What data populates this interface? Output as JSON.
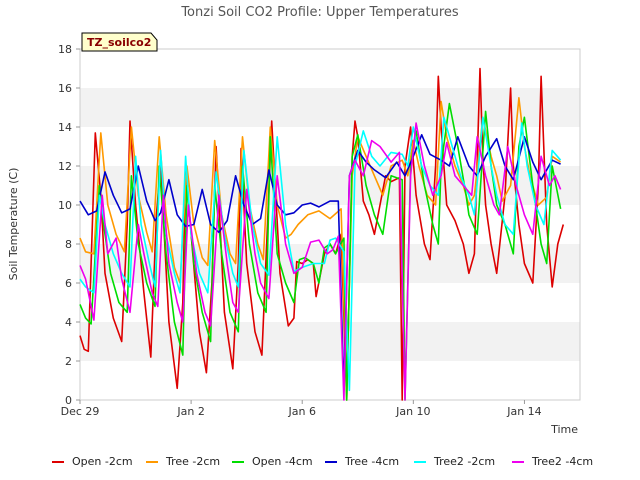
{
  "chart_data": {
    "type": "line",
    "title": "Tonzi Soil CO2 Profile: Upper Temperatures",
    "xlabel": "Time",
    "ylabel": "Soil Temperature (C)",
    "ylim": [
      0,
      18
    ],
    "yticks": [
      0,
      2,
      4,
      6,
      8,
      10,
      12,
      14,
      16,
      18
    ],
    "xlim": [
      0,
      18
    ],
    "x_unit": "days since Dec 29",
    "xticks": [
      {
        "value": 0,
        "label": "Dec 29"
      },
      {
        "value": 4,
        "label": "Jan 2"
      },
      {
        "value": 8,
        "label": "Jan 6"
      },
      {
        "value": 12,
        "label": "Jan 10"
      },
      {
        "value": 16,
        "label": "Jan 14"
      }
    ],
    "grid": "horizontal bands",
    "legend_position": "bottom",
    "badge": "TZ_soilco2",
    "colors": {
      "band": "#f2f2f2",
      "plot_border": "#cccccc",
      "badge_bg": "#ffffcc"
    },
    "series": [
      {
        "name": "Open -2cm",
        "color": "#dd0000",
        "x": [
          0.0,
          0.15,
          0.3,
          0.55,
          0.75,
          0.9,
          1.2,
          1.5,
          1.7,
          1.8,
          2.0,
          2.3,
          2.55,
          2.75,
          2.9,
          3.2,
          3.5,
          3.7,
          3.8,
          4.0,
          4.3,
          4.55,
          4.75,
          4.9,
          5.2,
          5.5,
          5.7,
          5.8,
          6.0,
          6.3,
          6.55,
          6.75,
          6.9,
          7.2,
          7.5,
          7.7,
          7.8,
          8.0,
          8.2,
          8.4,
          8.5,
          8.8,
          9.0,
          9.2,
          9.4,
          9.6,
          9.8,
          9.9,
          10.0,
          10.2,
          10.4,
          10.6,
          10.8,
          11.0,
          11.2,
          11.5,
          11.6,
          11.7,
          11.9,
          12.1,
          12.4,
          12.6,
          12.8,
          12.9,
          13.0,
          13.2,
          13.5,
          13.8,
          14.0,
          14.2,
          14.4,
          14.5,
          14.6,
          14.8,
          15.0,
          15.3,
          15.5,
          15.6,
          15.8,
          16.0,
          16.3,
          16.5,
          16.6,
          16.8,
          17.0,
          17.2,
          17.4
        ],
        "y": [
          3.3,
          2.6,
          2.5,
          13.7,
          10.5,
          6.5,
          4.2,
          3.0,
          9.0,
          14.3,
          10.0,
          5.5,
          2.2,
          9.5,
          12.0,
          4.0,
          0.6,
          5.0,
          12.1,
          8.5,
          3.5,
          1.4,
          6.0,
          13.0,
          4.5,
          1.6,
          7.0,
          12.9,
          7.0,
          3.5,
          2.3,
          9.0,
          14.3,
          6.5,
          3.8,
          4.2,
          7.1,
          7.0,
          7.2,
          7.0,
          5.3,
          7.5,
          8.0,
          7.5,
          8.5,
          0.0,
          12.5,
          14.3,
          13.5,
          10.2,
          9.5,
          8.5,
          10.0,
          11.5,
          11.2,
          11.4,
          0.0,
          12.0,
          14.0,
          10.5,
          8.0,
          7.2,
          12.0,
          16.6,
          14.0,
          10.0,
          9.2,
          8.0,
          6.5,
          7.5,
          17.0,
          12.5,
          10.0,
          8.0,
          6.5,
          10.5,
          16.0,
          12.0,
          9.0,
          7.0,
          6.0,
          11.0,
          16.6,
          9.0,
          5.8,
          8.0,
          9.0
        ]
      },
      {
        "name": "Tree -2cm",
        "color": "#ff9900",
        "x": [
          0.0,
          0.2,
          0.5,
          0.75,
          1.0,
          1.3,
          1.6,
          1.85,
          2.1,
          2.4,
          2.6,
          2.85,
          3.1,
          3.4,
          3.6,
          3.85,
          4.1,
          4.4,
          4.6,
          4.85,
          5.1,
          5.4,
          5.6,
          5.85,
          6.1,
          6.4,
          6.6,
          6.85,
          7.1,
          7.4,
          7.6,
          7.85,
          8.2,
          8.6,
          9.0,
          9.4,
          9.6,
          9.8,
          10.0,
          10.3,
          10.6,
          10.9,
          11.2,
          11.6,
          11.8,
          12.0,
          12.2,
          12.5,
          12.8,
          13.0,
          13.2,
          13.5,
          13.8,
          14.0,
          14.2,
          14.5,
          14.8,
          15.0,
          15.2,
          15.5,
          15.8,
          16.0,
          16.2,
          16.5,
          16.8,
          17.0,
          17.3
        ],
        "y": [
          8.3,
          7.6,
          7.5,
          13.7,
          10.0,
          8.5,
          7.6,
          14.0,
          10.5,
          8.6,
          7.6,
          13.5,
          9.5,
          6.8,
          6.0,
          12.0,
          9.0,
          7.3,
          6.9,
          13.3,
          9.5,
          7.5,
          7.0,
          13.5,
          10.0,
          8.0,
          7.2,
          14.0,
          10.0,
          8.3,
          8.5,
          9.0,
          9.5,
          9.7,
          9.3,
          9.8,
          0.5,
          11.5,
          13.5,
          12.5,
          11.5,
          10.5,
          12.0,
          12.3,
          11.5,
          13.3,
          12.0,
          10.5,
          10.0,
          15.3,
          13.5,
          12.0,
          11.0,
          10.0,
          10.5,
          14.5,
          12.5,
          11.5,
          10.2,
          11.0,
          15.5,
          13.0,
          11.5,
          10.0,
          10.4,
          12.5,
          12.2
        ]
      },
      {
        "name": "Open -4cm",
        "color": "#00dd00",
        "x": [
          0.0,
          0.2,
          0.4,
          0.7,
          0.85,
          1.1,
          1.4,
          1.7,
          1.85,
          2.1,
          2.4,
          2.7,
          2.85,
          3.1,
          3.4,
          3.7,
          3.85,
          4.1,
          4.4,
          4.7,
          4.85,
          5.1,
          5.4,
          5.7,
          5.85,
          6.1,
          6.4,
          6.7,
          6.85,
          7.1,
          7.4,
          7.7,
          7.9,
          8.1,
          8.4,
          8.6,
          8.8,
          9.0,
          9.2,
          9.5,
          9.6,
          9.8,
          10.0,
          10.3,
          10.6,
          10.9,
          11.2,
          11.6,
          11.7,
          11.9,
          12.1,
          12.4,
          12.7,
          12.9,
          13.0,
          13.3,
          13.6,
          13.9,
          14.0,
          14.3,
          14.6,
          14.8,
          15.0,
          15.3,
          15.6,
          15.8,
          16.0,
          16.3,
          16.6,
          16.8,
          17.0,
          17.3
        ],
        "y": [
          4.9,
          4.2,
          3.9,
          11.0,
          9.0,
          6.5,
          5.0,
          4.5,
          11.5,
          8.0,
          6.0,
          4.8,
          12.0,
          7.5,
          4.0,
          2.3,
          11.0,
          7.0,
          4.5,
          3.0,
          11.0,
          7.5,
          4.5,
          3.5,
          12.0,
          8.0,
          5.5,
          4.5,
          13.5,
          7.5,
          6.0,
          5.0,
          7.2,
          7.3,
          7.0,
          6.0,
          7.8,
          8.0,
          7.5,
          8.3,
          0.0,
          12.5,
          13.6,
          11.0,
          9.5,
          8.5,
          11.5,
          11.3,
          0.0,
          12.0,
          13.8,
          11.0,
          9.0,
          8.0,
          12.0,
          15.2,
          13.0,
          10.5,
          9.5,
          8.5,
          14.8,
          12.0,
          10.0,
          9.0,
          7.5,
          13.0,
          14.5,
          11.0,
          8.0,
          7.0,
          12.0,
          9.8
        ]
      },
      {
        "name": "Tree -4cm",
        "color": "#0000cc",
        "x": [
          0.0,
          0.3,
          0.6,
          0.9,
          1.2,
          1.5,
          1.8,
          2.1,
          2.4,
          2.7,
          2.9,
          3.2,
          3.5,
          3.8,
          4.1,
          4.4,
          4.7,
          5.0,
          5.3,
          5.6,
          5.9,
          6.2,
          6.5,
          6.8,
          7.1,
          7.4,
          7.7,
          8.0,
          8.3,
          8.6,
          9.0,
          9.3,
          9.5,
          9.7,
          10.0,
          10.3,
          10.6,
          11.0,
          11.4,
          11.7,
          12.0,
          12.3,
          12.6,
          13.0,
          13.3,
          13.6,
          14.0,
          14.3,
          14.6,
          15.0,
          15.3,
          15.6,
          16.0,
          16.3,
          16.6,
          17.0,
          17.3
        ],
        "y": [
          10.2,
          9.5,
          9.7,
          11.7,
          10.5,
          9.6,
          9.8,
          12.0,
          10.2,
          9.2,
          9.6,
          11.3,
          9.5,
          8.9,
          9.0,
          10.8,
          9.0,
          8.6,
          9.2,
          11.5,
          10.0,
          9.0,
          9.3,
          11.8,
          10.0,
          9.5,
          9.6,
          10.0,
          10.1,
          9.9,
          10.2,
          10.2,
          0.5,
          11.5,
          12.8,
          12.2,
          11.8,
          11.4,
          12.2,
          11.5,
          12.5,
          13.6,
          12.6,
          12.3,
          12.0,
          13.5,
          12.0,
          11.5,
          12.5,
          13.4,
          12.0,
          11.3,
          13.5,
          12.2,
          11.3,
          12.3,
          12.1
        ]
      },
      {
        "name": "Tree2 -2cm",
        "color": "#00ffff",
        "x": [
          0.0,
          0.2,
          0.5,
          0.7,
          0.9,
          1.2,
          1.5,
          1.8,
          2.0,
          2.2,
          2.5,
          2.7,
          2.9,
          3.1,
          3.4,
          3.6,
          3.8,
          4.0,
          4.3,
          4.6,
          4.9,
          5.2,
          5.5,
          5.7,
          5.9,
          6.2,
          6.5,
          6.8,
          7.1,
          7.4,
          7.7,
          8.0,
          8.4,
          8.8,
          9.0,
          9.2,
          9.5,
          9.7,
          9.9,
          10.2,
          10.5,
          10.8,
          11.2,
          11.6,
          11.8,
          12.0,
          12.3,
          12.6,
          12.9,
          13.1,
          13.4,
          13.7,
          14.0,
          14.2,
          14.5,
          14.8,
          15.0,
          15.3,
          15.6,
          15.9,
          16.1,
          16.4,
          16.7,
          17.0,
          17.3
        ],
        "y": [
          6.2,
          5.8,
          5.5,
          10.5,
          9.0,
          7.5,
          6.5,
          5.8,
          12.5,
          9.0,
          7.0,
          5.8,
          12.8,
          8.5,
          6.5,
          5.5,
          12.5,
          8.5,
          6.5,
          5.5,
          11.7,
          8.5,
          6.5,
          5.8,
          12.8,
          9.0,
          7.0,
          6.4,
          13.5,
          9.0,
          6.6,
          6.8,
          7.0,
          7.0,
          8.2,
          8.3,
          7.6,
          0.5,
          12.0,
          13.8,
          12.5,
          12.0,
          12.7,
          12.6,
          12.0,
          14.0,
          12.0,
          11.0,
          10.5,
          14.5,
          13.0,
          11.5,
          10.5,
          9.5,
          14.5,
          12.0,
          10.5,
          9.0,
          8.5,
          14.2,
          12.0,
          10.0,
          9.0,
          12.8,
          12.3
        ]
      },
      {
        "name": "Tree2 -4cm",
        "color": "#ee00ee",
        "x": [
          0.0,
          0.2,
          0.5,
          0.8,
          1.0,
          1.3,
          1.5,
          1.8,
          2.1,
          2.3,
          2.6,
          2.8,
          3.0,
          3.2,
          3.5,
          3.7,
          3.9,
          4.2,
          4.5,
          4.7,
          5.0,
          5.3,
          5.5,
          5.7,
          6.0,
          6.3,
          6.5,
          6.8,
          7.1,
          7.4,
          7.7,
          8.0,
          8.3,
          8.6,
          8.9,
          9.1,
          9.3,
          9.5,
          9.7,
          9.9,
          10.2,
          10.5,
          10.8,
          11.2,
          11.5,
          11.7,
          11.9,
          12.1,
          12.4,
          12.7,
          13.0,
          13.2,
          13.5,
          13.8,
          14.1,
          14.3,
          14.6,
          14.9,
          15.1,
          15.4,
          15.7,
          16.0,
          16.3,
          16.6,
          16.9,
          17.1,
          17.3
        ],
        "y": [
          6.9,
          6.2,
          4.1,
          10.5,
          7.5,
          8.3,
          6.2,
          4.5,
          9.0,
          7.5,
          5.5,
          4.8,
          10.5,
          7.0,
          5.0,
          4.0,
          10.0,
          6.5,
          4.5,
          3.8,
          10.5,
          7.0,
          5.0,
          4.5,
          10.8,
          7.5,
          6.0,
          5.2,
          11.5,
          8.0,
          6.5,
          6.8,
          8.1,
          8.2,
          7.5,
          7.7,
          8.4,
          0.0,
          11.5,
          12.3,
          11.5,
          13.3,
          13.0,
          12.2,
          12.7,
          0.0,
          11.5,
          14.2,
          12.0,
          10.5,
          11.5,
          13.2,
          11.5,
          11.0,
          10.5,
          13.5,
          11.5,
          10.0,
          9.5,
          13.0,
          11.0,
          9.5,
          8.5,
          12.5,
          11.0,
          11.5,
          10.8
        ]
      }
    ]
  }
}
